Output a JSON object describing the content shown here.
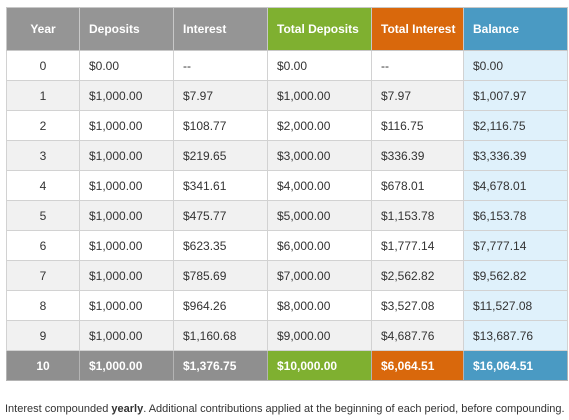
{
  "table": {
    "headers": [
      {
        "label": "Year"
      },
      {
        "label": "Deposits"
      },
      {
        "label": "Interest"
      },
      {
        "label": "Total Deposits"
      },
      {
        "label": "Total Interest"
      },
      {
        "label": "Balance"
      }
    ],
    "rows": [
      [
        "0",
        "$0.00",
        "--",
        "$0.00",
        "--",
        "$0.00"
      ],
      [
        "1",
        "$1,000.00",
        "$7.97",
        "$1,000.00",
        "$7.97",
        "$1,007.97"
      ],
      [
        "2",
        "$1,000.00",
        "$108.77",
        "$2,000.00",
        "$116.75",
        "$2,116.75"
      ],
      [
        "3",
        "$1,000.00",
        "$219.65",
        "$3,000.00",
        "$336.39",
        "$3,336.39"
      ],
      [
        "4",
        "$1,000.00",
        "$341.61",
        "$4,000.00",
        "$678.01",
        "$4,678.01"
      ],
      [
        "5",
        "$1,000.00",
        "$475.77",
        "$5,000.00",
        "$1,153.78",
        "$6,153.78"
      ],
      [
        "6",
        "$1,000.00",
        "$623.35",
        "$6,000.00",
        "$1,777.14",
        "$7,777.14"
      ],
      [
        "7",
        "$1,000.00",
        "$785.69",
        "$7,000.00",
        "$2,562.82",
        "$9,562.82"
      ],
      [
        "8",
        "$1,000.00",
        "$964.26",
        "$8,000.00",
        "$3,527.08",
        "$11,527.08"
      ],
      [
        "9",
        "$1,000.00",
        "$1,160.68",
        "$9,000.00",
        "$4,687.76",
        "$13,687.76"
      ]
    ],
    "total_row": [
      "10",
      "$1,000.00",
      "$1,376.75",
      "$10,000.00",
      "$6,064.51",
      "$16,064.51"
    ]
  },
  "footnote": {
    "prefix": "Interest compounded ",
    "emphasis": "yearly",
    "suffix": ". Additional contributions applied at the beginning of each period, before compounding."
  },
  "colors": {
    "header_gray": "#959595",
    "total_deposits_green": "#7fb030",
    "total_interest_orange": "#d9680c",
    "balance_blue": "#4a9ac3",
    "balance_column_tint": "#dff1fb",
    "row_stripe": "#f1f1f1"
  }
}
